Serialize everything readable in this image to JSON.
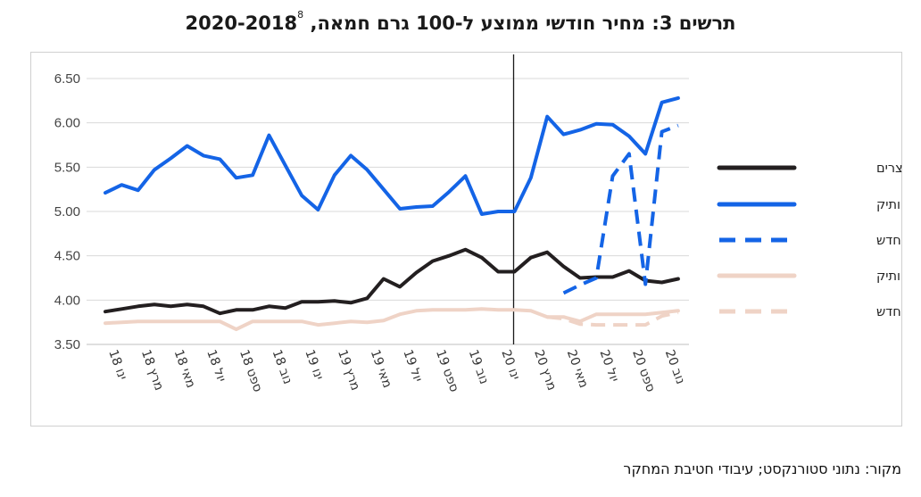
{
  "title": "תרשים 3: מחיר חודשי ממוצע ל-100 גרם חמאה, 2020-2018",
  "title_footnote": "8",
  "source": "מקור: נתוני סטורנקסט; עיבודי חטיבת המחקר",
  "chart_data": {
    "type": "line",
    "title": "תרשים 3: מחיר חודשי ממוצע ל-100 גרם חמאה, 2020-2018",
    "ylim": [
      3.5,
      6.5
    ],
    "yticks": [
      "3.50",
      "4.00",
      "4.50",
      "5.00",
      "5.50",
      "6.00",
      "6.50"
    ],
    "grid": true,
    "legend_position": "right",
    "x": [
      "ינו 18",
      "פבר 18",
      "מרץ 18",
      "אפר 18",
      "מאי 18",
      "יונ 18",
      "יול 18",
      "אוג 18",
      "ספט 18",
      "אוק 18",
      "נוב 18",
      "דצמ 18",
      "ינו 19",
      "פבר 19",
      "מרץ 19",
      "אפר 19",
      "מאי 19",
      "יונ 19",
      "יול 19",
      "אוג 19",
      "ספט 19",
      "אוק 19",
      "נוב 19",
      "דצמ 19",
      "ינו 20",
      "פבר 20",
      "מרץ 20",
      "אפר 20",
      "מאי 20",
      "יונ 20",
      "יול 20",
      "אוג 20",
      "ספט 20",
      "אוק 20",
      "נוב 20",
      "דצמ 20"
    ],
    "xtick_labels": [
      "ינו 18",
      "מרץ 18",
      "מאי 18",
      "יול 18",
      "ספט 18",
      "נוב 18",
      "ינו 19",
      "מרץ 19",
      "מאי 19",
      "יול 19",
      "ספט 19",
      "נוב 19",
      "ינו 20",
      "מרץ 20",
      "מאי 20",
      "יול 20",
      "ספט 20",
      "נוב 20"
    ],
    "vertical_marker": "פבר 20",
    "series": [
      {
        "name": "כלל מוצרים",
        "color": "#231f20",
        "style": "solid",
        "values": [
          3.87,
          3.9,
          3.93,
          3.95,
          3.93,
          3.95,
          3.93,
          3.85,
          3.89,
          3.89,
          3.93,
          3.91,
          3.98,
          3.98,
          3.99,
          3.97,
          4.02,
          4.24,
          4.15,
          4.31,
          4.44,
          4.5,
          4.57,
          4.48,
          4.32,
          4.32,
          4.48,
          4.54,
          4.38,
          4.25,
          4.26,
          4.26,
          4.33,
          4.22,
          4.2,
          4.24
        ]
      },
      {
        "name": "לא מפוקח ותיק",
        "color": "#1464e6",
        "style": "solid",
        "values": [
          5.21,
          5.3,
          5.24,
          5.47,
          5.6,
          5.74,
          5.63,
          5.59,
          5.38,
          5.41,
          5.86,
          5.52,
          5.18,
          5.02,
          5.41,
          5.63,
          5.47,
          5.25,
          5.03,
          5.05,
          5.06,
          5.22,
          5.4,
          4.97,
          5.0,
          5.0,
          5.38,
          6.07,
          5.87,
          5.92,
          5.99,
          5.98,
          5.85,
          5.65,
          6.23,
          6.28
        ]
      },
      {
        "name": "לא מפוקח חדש",
        "color": "#1464e6",
        "style": "dashed",
        "values": [
          null,
          null,
          null,
          null,
          null,
          null,
          null,
          null,
          null,
          null,
          null,
          null,
          null,
          null,
          null,
          null,
          null,
          null,
          null,
          null,
          null,
          null,
          null,
          null,
          null,
          null,
          null,
          null,
          4.08,
          4.17,
          4.25,
          5.4,
          5.65,
          4.18,
          5.9,
          5.97
        ]
      },
      {
        "name": "מפוקח ותיק",
        "color": "#efd3c6",
        "style": "solid",
        "values": [
          3.74,
          3.75,
          3.76,
          3.76,
          3.76,
          3.76,
          3.76,
          3.76,
          3.67,
          3.76,
          3.76,
          3.76,
          3.76,
          3.72,
          3.74,
          3.76,
          3.75,
          3.77,
          3.84,
          3.88,
          3.89,
          3.89,
          3.89,
          3.9,
          3.89,
          3.89,
          3.88,
          3.81,
          3.81,
          3.76,
          3.84,
          3.84,
          3.84,
          3.84,
          3.86,
          3.88
        ]
      },
      {
        "name": "מפוקח חדש",
        "color": "#efd3c6",
        "style": "dashed",
        "values": [
          null,
          null,
          null,
          null,
          null,
          null,
          null,
          null,
          null,
          null,
          null,
          null,
          null,
          null,
          null,
          null,
          null,
          null,
          null,
          null,
          null,
          null,
          null,
          null,
          null,
          null,
          null,
          3.81,
          3.79,
          3.73,
          3.72,
          3.72,
          3.72,
          3.72,
          3.82,
          3.86
        ]
      }
    ]
  }
}
